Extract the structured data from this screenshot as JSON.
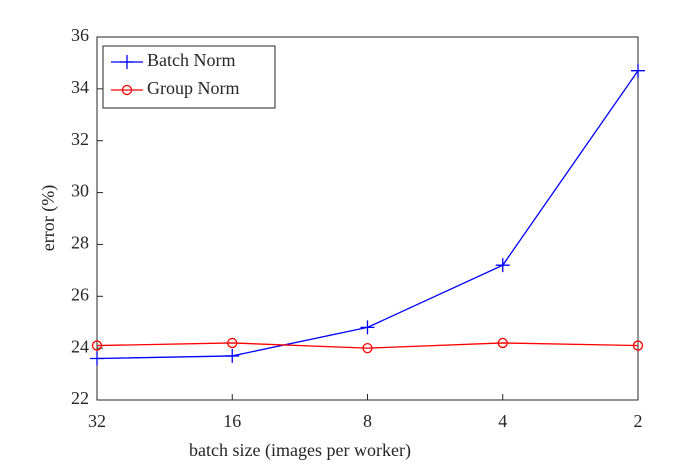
{
  "chart_data": {
    "type": "line",
    "x_label": "batch size (images per worker)",
    "y_label": "error (%)",
    "categories": [
      "32",
      "16",
      "8",
      "4",
      "2"
    ],
    "series": [
      {
        "name": "Batch Norm",
        "color": "#0000ff",
        "marker": "plus",
        "values": [
          23.6,
          23.7,
          24.8,
          27.2,
          34.7
        ]
      },
      {
        "name": "Group Norm",
        "color": "#ff0000",
        "marker": "circle",
        "values": [
          24.1,
          24.2,
          24.0,
          24.2,
          24.1
        ]
      }
    ],
    "ylim": [
      22,
      36
    ],
    "yticks": [
      22,
      24,
      26,
      28,
      30,
      32,
      34,
      36
    ],
    "grid": false,
    "legend": "upper left"
  }
}
